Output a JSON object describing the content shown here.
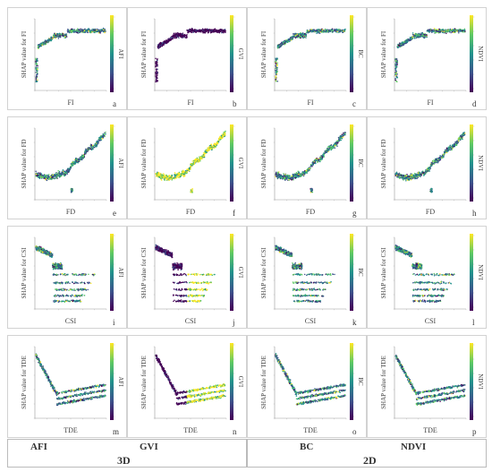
{
  "footer": {
    "labels": [
      "AFI",
      "GVI",
      "BC",
      "NDVI"
    ],
    "groups": [
      "3D",
      "2D"
    ]
  },
  "palette": [
    "#440154",
    "#3b528b",
    "#21918c",
    "#5ec962",
    "#fde725"
  ],
  "chart_data": [
    {
      "type": "scatter",
      "letter": "a",
      "feature": "FI",
      "ylabel": "SHAP value for FI",
      "xlabel": "FI",
      "cbar": "AFI",
      "pattern": "fi",
      "color_mode": "mixed",
      "dense": "#1f6f8b"
    },
    {
      "type": "scatter",
      "letter": "b",
      "feature": "FI",
      "ylabel": "SHAP value for FI",
      "xlabel": "FI",
      "cbar": "GVI",
      "pattern": "fi",
      "color_mode": "purple",
      "dense": "#3b2a6e"
    },
    {
      "type": "scatter",
      "letter": "c",
      "feature": "FI",
      "ylabel": "SHAP value for FI",
      "xlabel": "FI",
      "cbar": "BC",
      "pattern": "fi",
      "color_mode": "mixed",
      "dense": "#2b7a8c"
    },
    {
      "type": "scatter",
      "letter": "d",
      "feature": "FI",
      "ylabel": "SHAP value for FI",
      "xlabel": "FI",
      "cbar": "NDVI",
      "pattern": "fi",
      "color_mode": "mixed",
      "dense": "#2b6f8b"
    },
    {
      "type": "scatter",
      "letter": "e",
      "feature": "FD",
      "ylabel": "SHAP value for FD",
      "xlabel": "FD",
      "cbar": "AFI",
      "pattern": "fd",
      "color_mode": "mixed",
      "dense": "#277f8e"
    },
    {
      "type": "scatter",
      "letter": "f",
      "feature": "FD",
      "ylabel": "SHAP value for FD",
      "xlabel": "FD",
      "cbar": "GVI",
      "pattern": "fd",
      "color_mode": "yellow",
      "dense": "#b5de2b"
    },
    {
      "type": "scatter",
      "letter": "g",
      "feature": "FD",
      "ylabel": "SHAP value for FD",
      "xlabel": "FD",
      "cbar": "BC",
      "pattern": "fd",
      "color_mode": "mixed",
      "dense": "#2a788e"
    },
    {
      "type": "scatter",
      "letter": "h",
      "feature": "FD",
      "ylabel": "SHAP value for FD",
      "xlabel": "FD",
      "cbar": "NDVI",
      "pattern": "fd",
      "color_mode": "mixed",
      "dense": "#2c728e"
    },
    {
      "type": "scatter",
      "letter": "i",
      "feature": "CSI",
      "ylabel": "SHAP value for CSI",
      "xlabel": "CSI",
      "cbar": "AFI",
      "pattern": "csi",
      "color_mode": "mixed",
      "dense": "#2a788e"
    },
    {
      "type": "scatter",
      "letter": "j",
      "feature": "CSI",
      "ylabel": "SHAP value for CSI",
      "xlabel": "CSI",
      "cbar": "GVI",
      "pattern": "csi",
      "color_mode": "purple_yellow",
      "dense": "#3b2a6e"
    },
    {
      "type": "scatter",
      "letter": "k",
      "feature": "CSI",
      "ylabel": "SHAP value for CSI",
      "xlabel": "CSI",
      "cbar": "BC",
      "pattern": "csi",
      "color_mode": "mixed",
      "dense": "#2a6f8e"
    },
    {
      "type": "scatter",
      "letter": "l",
      "feature": "CSI",
      "ylabel": "SHAP value for CSI",
      "xlabel": "CSI",
      "cbar": "NDVI",
      "pattern": "csi",
      "color_mode": "mixed",
      "dense": "#2c728e"
    },
    {
      "type": "scatter",
      "letter": "m",
      "feature": "TDE",
      "ylabel": "SHAP value for TDE",
      "xlabel": "TDE",
      "cbar": "AFI",
      "pattern": "tde",
      "color_mode": "mixed",
      "dense": "#277f8e"
    },
    {
      "type": "scatter",
      "letter": "n",
      "feature": "TDE",
      "ylabel": "SHAP value for TDE",
      "xlabel": "TDE",
      "cbar": "GVI",
      "pattern": "tde",
      "color_mode": "purple_yellow",
      "dense": "#3b2a6e"
    },
    {
      "type": "scatter",
      "letter": "o",
      "feature": "TDE",
      "ylabel": "SHAP value for TDE",
      "xlabel": "TDE",
      "cbar": "BC",
      "pattern": "tde",
      "color_mode": "mixed",
      "dense": "#2a6f8e"
    },
    {
      "type": "scatter",
      "letter": "p",
      "feature": "TDE",
      "ylabel": "SHAP value for TDE",
      "xlabel": "TDE",
      "cbar": "NDVI",
      "pattern": "tde",
      "color_mode": "mixed",
      "dense": "#2c728e"
    }
  ]
}
